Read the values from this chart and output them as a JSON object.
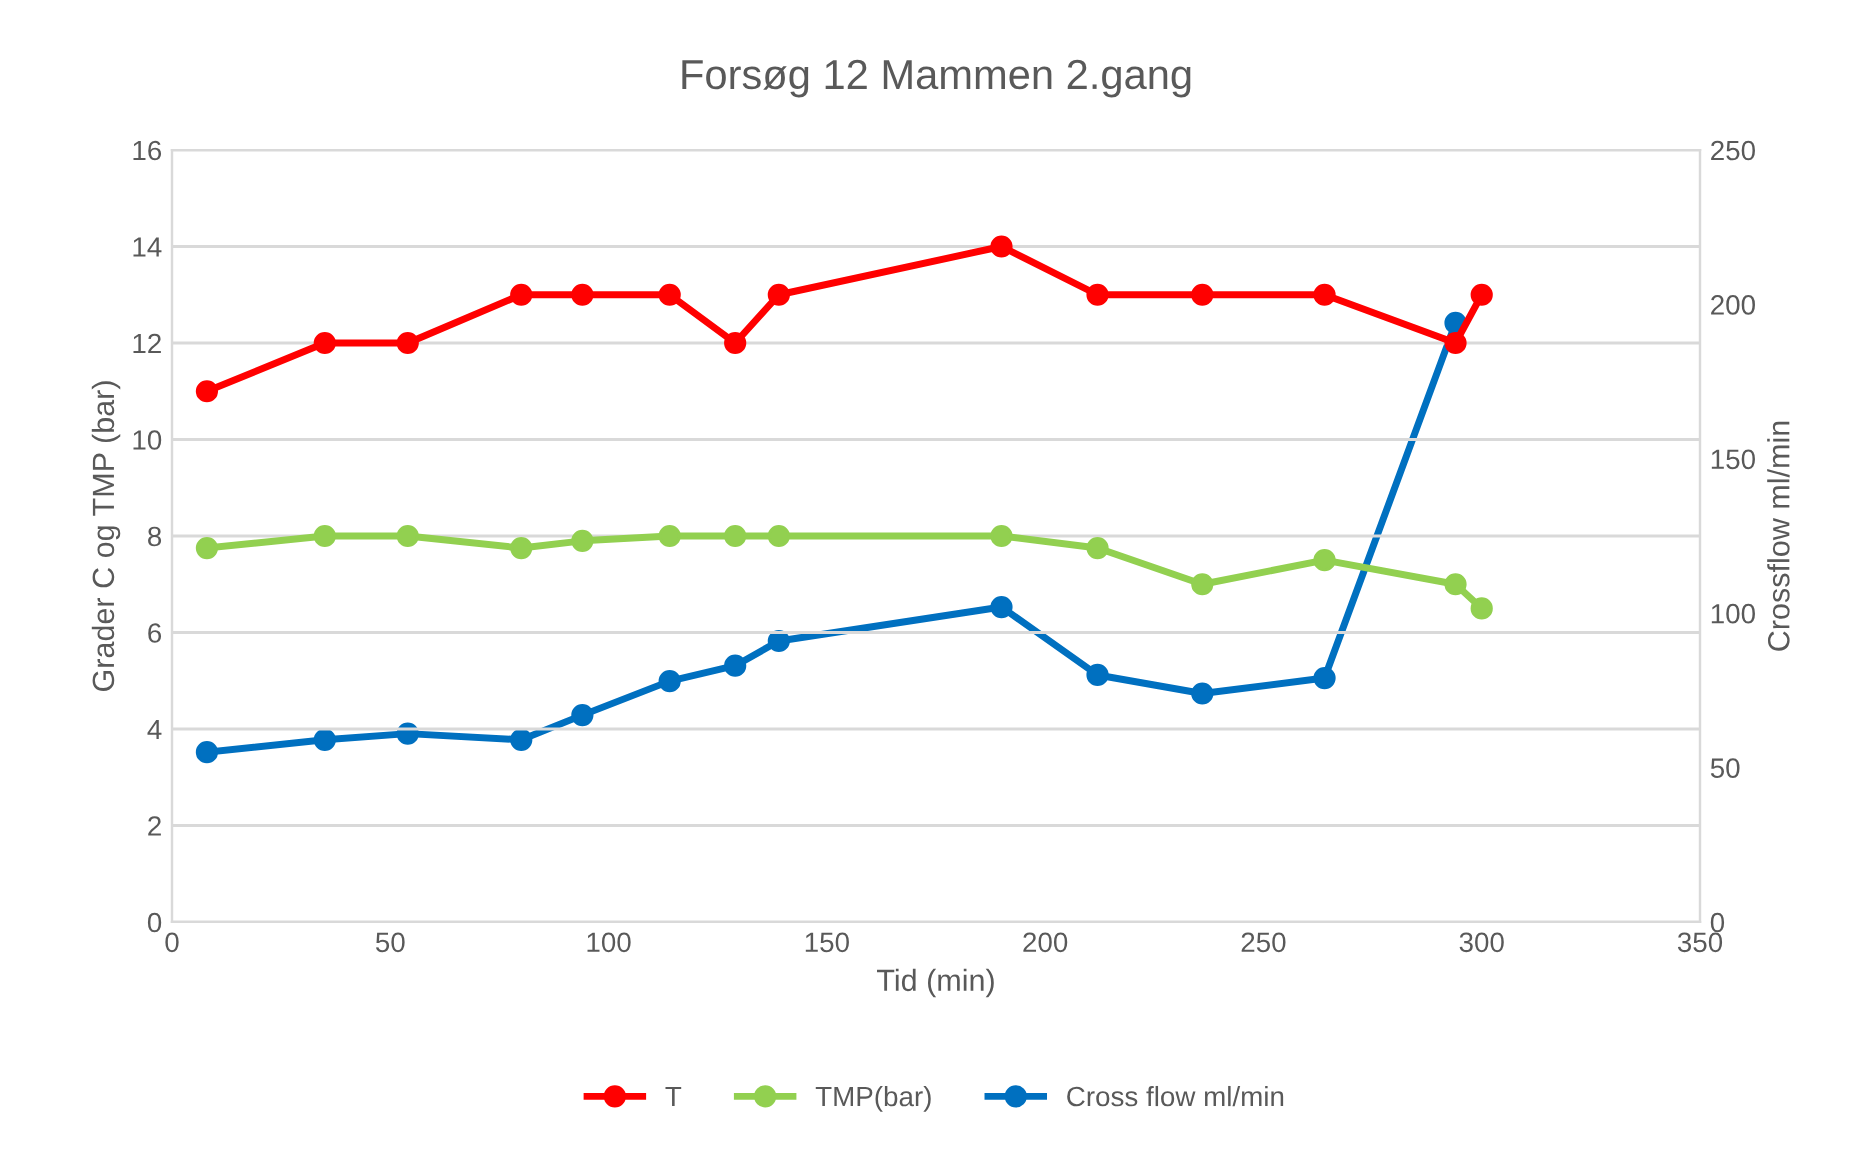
{
  "chart_data": {
    "type": "line",
    "title": "Forsøg 12 Mammen 2.gang",
    "xlabel": "Tid (min)",
    "ylabel": "Grader C og TMP (bar)",
    "y2label": "Crossflow ml/min",
    "xlim": [
      0,
      350
    ],
    "xticks": [
      0,
      50,
      100,
      150,
      200,
      250,
      300,
      350
    ],
    "ylim": [
      0,
      16
    ],
    "yticks": [
      0,
      2,
      4,
      6,
      8,
      10,
      12,
      14,
      16
    ],
    "y2lim": [
      0,
      250
    ],
    "y2ticks": [
      0,
      50,
      100,
      150,
      200,
      250
    ],
    "grid": "y",
    "legend": "bottom",
    "marker": "circle",
    "line_style": "solid",
    "series": [
      {
        "name": "T",
        "color": "#ff0000",
        "x": [
          8,
          35,
          54,
          80,
          94,
          114,
          129,
          139,
          190,
          212,
          236,
          264,
          294,
          300
        ],
        "values": [
          11,
          12,
          12,
          13,
          13,
          13,
          12,
          13,
          14,
          13,
          13,
          13,
          12,
          13
        ]
      },
      {
        "name": "TMP(bar)",
        "color": "#92d050",
        "x": [
          8,
          35,
          54,
          80,
          94,
          114,
          129,
          139,
          190,
          212,
          236,
          264,
          294,
          300
        ],
        "values": [
          7.75,
          8,
          8,
          7.75,
          7.9,
          8,
          8,
          8,
          8,
          7.75,
          7,
          7.5,
          7,
          6.5
        ]
      },
      {
        "name": "Cross flow ml/min",
        "color": "#0070c0",
        "axis": "y2",
        "x": [
          8,
          35,
          54,
          80,
          94,
          114,
          129,
          139,
          190,
          212,
          236,
          264,
          294
        ],
        "values": [
          55,
          59,
          61,
          59,
          67,
          78,
          83,
          91,
          102,
          80,
          74,
          79,
          194
        ]
      }
    ]
  }
}
